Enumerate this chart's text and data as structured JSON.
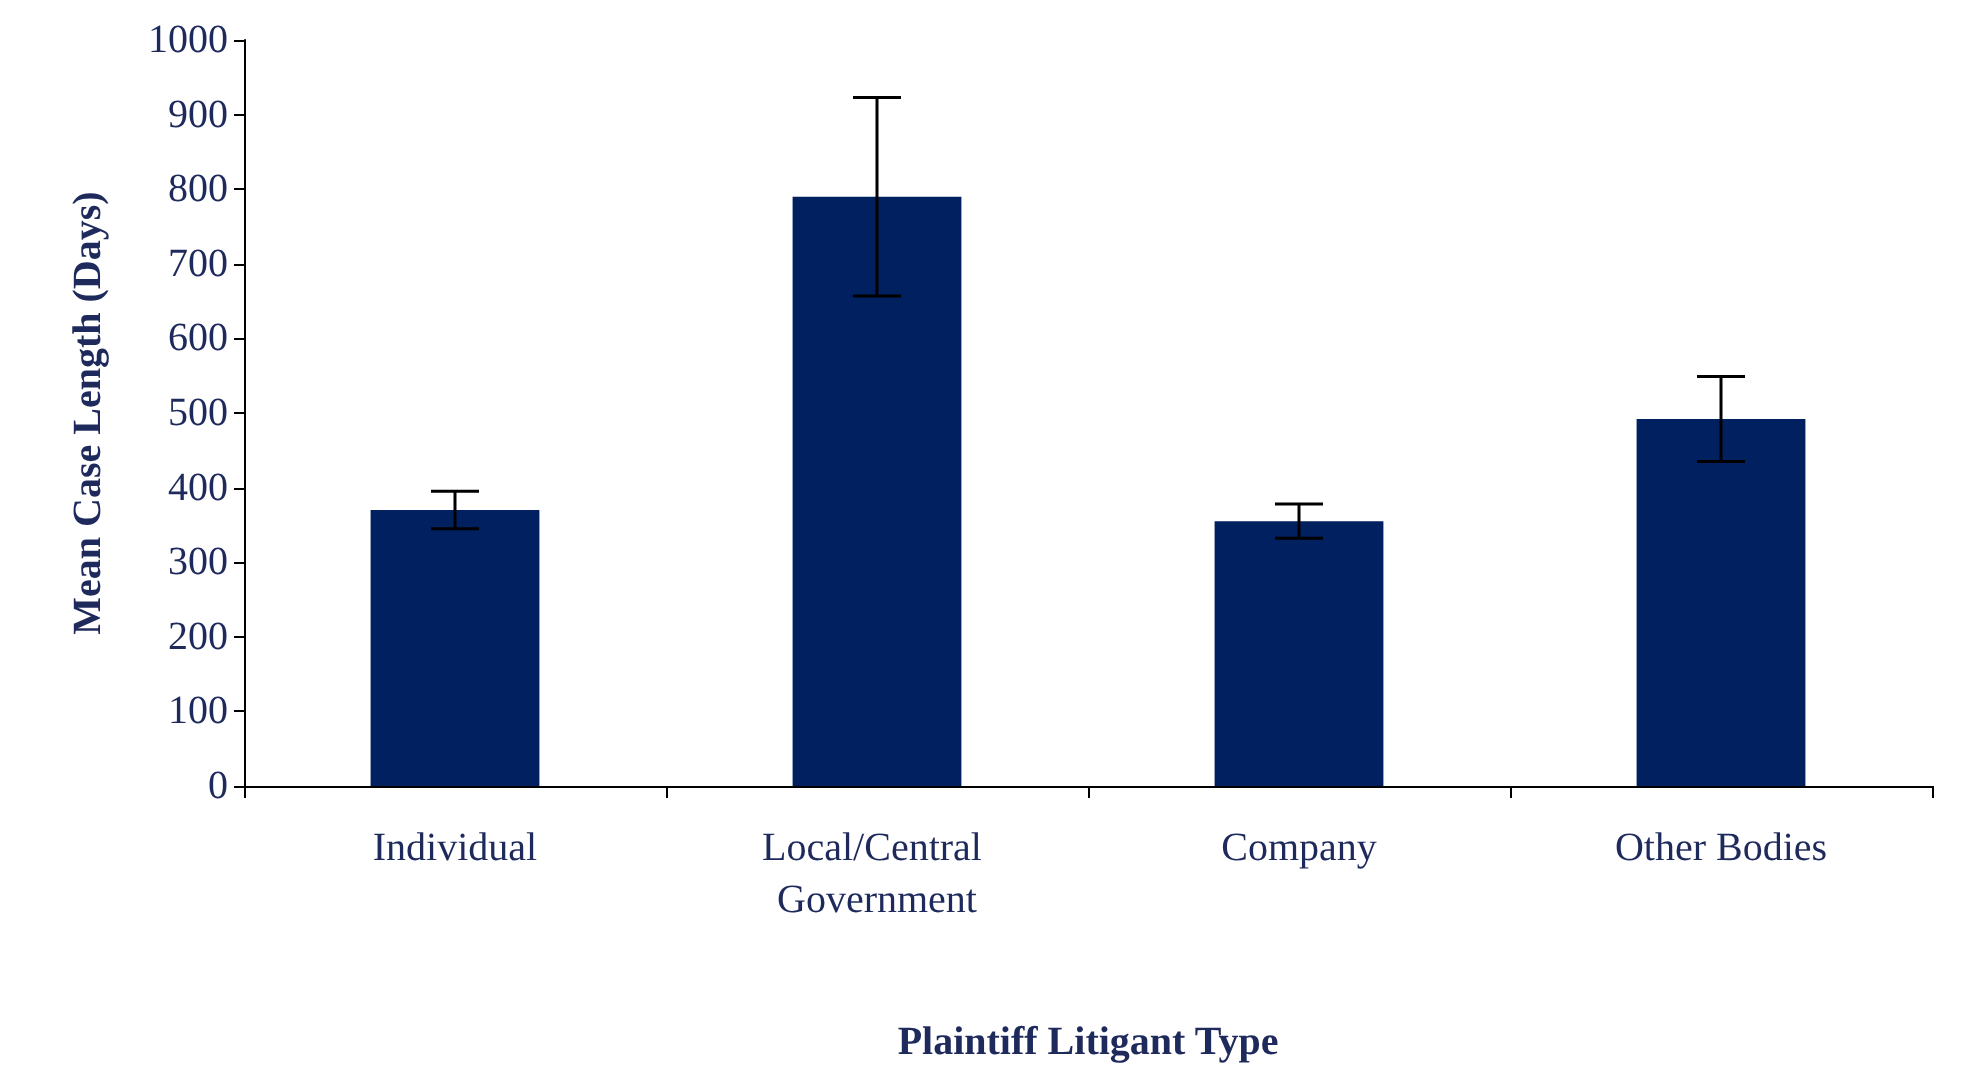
{
  "chart_data": {
    "type": "bar",
    "xlabel": "Plaintiff Litigant Type",
    "ylabel": "Mean Case Length (Days)",
    "categories": [
      "Individual",
      "Local/Central Government",
      "Company",
      "Other Bodies"
    ],
    "values": [
      370,
      790,
      355,
      492
    ],
    "errors": [
      25,
      133,
      23,
      57
    ],
    "color": "#002060",
    "ylim": [
      0,
      1000
    ],
    "yticks": [
      0,
      100,
      200,
      300,
      400,
      500,
      600,
      700,
      800,
      900,
      1000
    ],
    "grid": false
  }
}
